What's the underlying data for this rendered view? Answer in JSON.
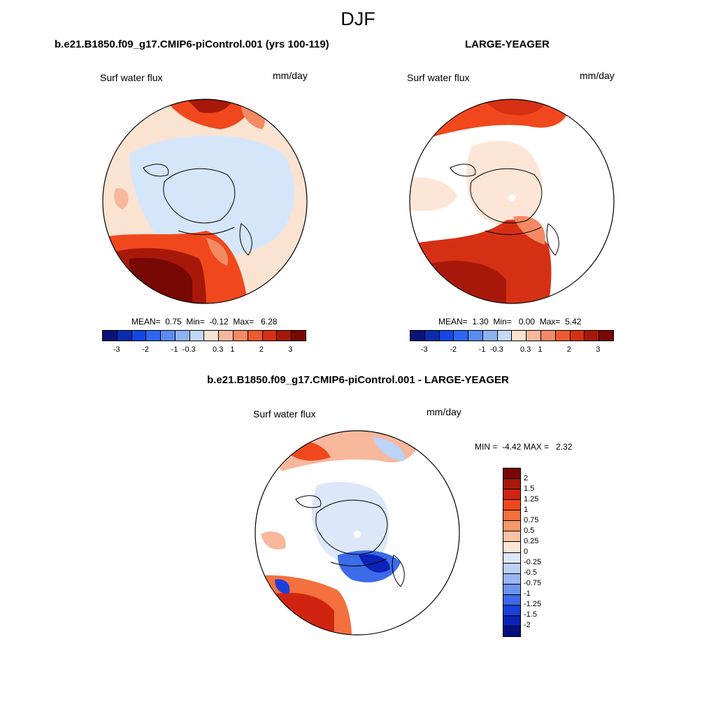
{
  "figure": {
    "season": "DJF"
  },
  "panel1": {
    "title": "b.e21.B1850.f09_g17.CMIP6-piControl.001 (yrs 100-119)",
    "variable": "Surf water flux",
    "units": "mm/day",
    "stats": "MEAN=  0.75  Min=  -0.12  Max=   6.28"
  },
  "panel2": {
    "title": "LARGE-YEAGER",
    "variable": "Surf water flux",
    "units": "mm/day",
    "stats": "MEAN=  1.30  Min=   0.00  Max=  5.42"
  },
  "panel3": {
    "title": "b.e21.B1850.f09_g17.CMIP6-piControl.001 - LARGE-YEAGER",
    "variable": "Surf water flux",
    "units": "mm/day",
    "stats": "MIN =  -4.42 MAX =   2.32"
  },
  "colorbar_h": {
    "colors": [
      "#08127a",
      "#0a2cb0",
      "#1446e6",
      "#2e66ef",
      "#5a8cf2",
      "#8eb2f4",
      "#c4d8f7",
      "#fbe3d2",
      "#f8b89c",
      "#f48a64",
      "#ec5a30",
      "#d63014",
      "#a8180a",
      "#780804"
    ],
    "tick_labels": [
      "-3",
      "-2",
      "-1",
      "-0.3",
      "0.3",
      "1",
      "2",
      "3"
    ]
  },
  "colorbar_v": {
    "colors": [
      "#780804",
      "#a8180a",
      "#d02410",
      "#f0481c",
      "#f4703e",
      "#f89868",
      "#fbc2a4",
      "#fde6d8",
      "#dce8fa",
      "#bcd2f6",
      "#98b6f2",
      "#6c94ee",
      "#3c6ae8",
      "#1a40dc",
      "#0a22b8",
      "#060e80"
    ],
    "tick_labels": [
      "2",
      "1.5",
      "1.25",
      "1",
      "0.75",
      "0.5",
      "0.25",
      "0",
      "-0.25",
      "-0.5",
      "-0.75",
      "-1",
      "-1.25",
      "-1.5",
      "-2"
    ]
  }
}
